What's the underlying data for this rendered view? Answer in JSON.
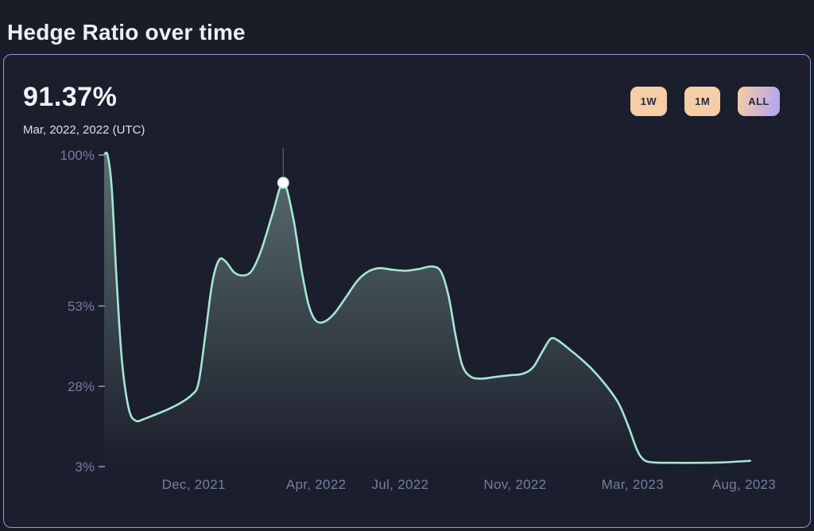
{
  "page": {
    "title": "Hedge Ratio over time"
  },
  "card": {
    "metric_value": "91.37%",
    "metric_caption": "Mar, 2022, 2022 (UTC)",
    "range_buttons": [
      {
        "label": "1W",
        "active": false
      },
      {
        "label": "1M",
        "active": false
      },
      {
        "label": "ALL",
        "active": true
      }
    ]
  },
  "colors": {
    "background": "#1a1c28",
    "card_border": "#8c9de0",
    "line": "#a5e6d2",
    "area": "#8fb0a6",
    "axis_text": "#747ea1",
    "crosshair": "#5a6078",
    "marker_fill": "#ffffff",
    "marker_ring": "#cdeade",
    "button_bg": "#f5cda6",
    "button_active_from": "#f2cba7",
    "button_active_to": "#b4a6ef",
    "button_text": "#272a40"
  },
  "chart_data": {
    "type": "area",
    "title": "Hedge Ratio over time",
    "xlabel": "",
    "ylabel": "",
    "ylim": [
      3,
      100
    ],
    "y_ticks": [
      100,
      53,
      28,
      3
    ],
    "grid": false,
    "legend": false,
    "x_ticks": [
      {
        "label": "Dec, 2021",
        "f": 0.131
      },
      {
        "label": "Apr, 2022",
        "f": 0.31
      },
      {
        "label": "Jul, 2022",
        "f": 0.433
      },
      {
        "label": "Nov, 2022",
        "f": 0.601
      },
      {
        "label": "Mar, 2023",
        "f": 0.773
      },
      {
        "label": "Aug, 2023",
        "f": 0.936
      }
    ],
    "series": [
      {
        "name": "Hedge Ratio",
        "points": [
          [
            0.0,
            100
          ],
          [
            0.005,
            100
          ],
          [
            0.011,
            90
          ],
          [
            0.018,
            62
          ],
          [
            0.026,
            36
          ],
          [
            0.036,
            21
          ],
          [
            0.046,
            17.3
          ],
          [
            0.058,
            17.8
          ],
          [
            0.075,
            19.2
          ],
          [
            0.095,
            21
          ],
          [
            0.113,
            23
          ],
          [
            0.128,
            25.3
          ],
          [
            0.138,
            29
          ],
          [
            0.148,
            44
          ],
          [
            0.158,
            60
          ],
          [
            0.168,
            67.3
          ],
          [
            0.178,
            66.8
          ],
          [
            0.19,
            63.5
          ],
          [
            0.203,
            62.5
          ],
          [
            0.216,
            64
          ],
          [
            0.23,
            70.5
          ],
          [
            0.246,
            81.5
          ],
          [
            0.262,
            91.37
          ],
          [
            0.276,
            81
          ],
          [
            0.289,
            64
          ],
          [
            0.299,
            53.5
          ],
          [
            0.309,
            48.6
          ],
          [
            0.321,
            48
          ],
          [
            0.336,
            50.5
          ],
          [
            0.353,
            55.5
          ],
          [
            0.371,
            61
          ],
          [
            0.387,
            63.8
          ],
          [
            0.403,
            64.8
          ],
          [
            0.422,
            64.3
          ],
          [
            0.442,
            64
          ],
          [
            0.462,
            64.6
          ],
          [
            0.48,
            65.3
          ],
          [
            0.493,
            63.6
          ],
          [
            0.504,
            56
          ],
          [
            0.514,
            44
          ],
          [
            0.524,
            34.5
          ],
          [
            0.536,
            31
          ],
          [
            0.552,
            30.4
          ],
          [
            0.572,
            30.9
          ],
          [
            0.592,
            31.4
          ],
          [
            0.612,
            31.9
          ],
          [
            0.627,
            33.8
          ],
          [
            0.641,
            38.8
          ],
          [
            0.653,
            42.8
          ],
          [
            0.663,
            42.4
          ],
          [
            0.676,
            40.3
          ],
          [
            0.696,
            36.8
          ],
          [
            0.716,
            32.8
          ],
          [
            0.736,
            27.8
          ],
          [
            0.753,
            22.5
          ],
          [
            0.767,
            15.5
          ],
          [
            0.779,
            8.5
          ],
          [
            0.789,
            5.2
          ],
          [
            0.803,
            4.3
          ],
          [
            0.835,
            4.2
          ],
          [
            0.87,
            4.2
          ],
          [
            0.905,
            4.3
          ],
          [
            0.945,
            4.8
          ]
        ]
      }
    ],
    "highlight": {
      "f": 0.262,
      "value": 91.37
    }
  }
}
